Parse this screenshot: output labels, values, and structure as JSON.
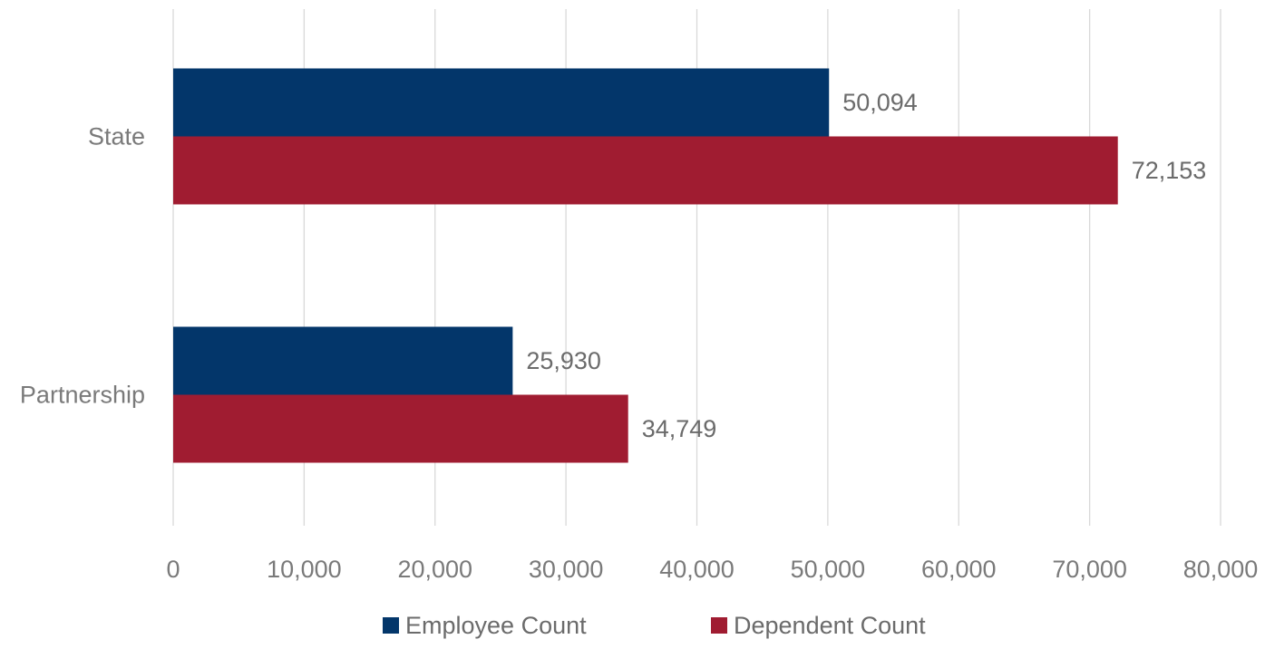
{
  "chart_data": {
    "type": "bar",
    "orientation": "horizontal",
    "categories": [
      "State",
      "Partnership"
    ],
    "series": [
      {
        "name": "Employee Count",
        "values": [
          50094,
          25930
        ],
        "labels": [
          "50,094",
          "25,930"
        ],
        "color": "#03366a"
      },
      {
        "name": "Dependent Count",
        "values": [
          72153,
          34749
        ],
        "labels": [
          "72,153",
          "34,749"
        ],
        "color": "#a01c31"
      }
    ],
    "xlim": [
      0,
      80000
    ],
    "xticks": [
      0,
      10000,
      20000,
      30000,
      40000,
      50000,
      60000,
      70000,
      80000
    ],
    "xtick_labels": [
      "0",
      "10,000",
      "20,000",
      "30,000",
      "40,000",
      "50,000",
      "60,000",
      "70,000",
      "80,000"
    ],
    "grid": true,
    "legend_position": "bottom"
  }
}
